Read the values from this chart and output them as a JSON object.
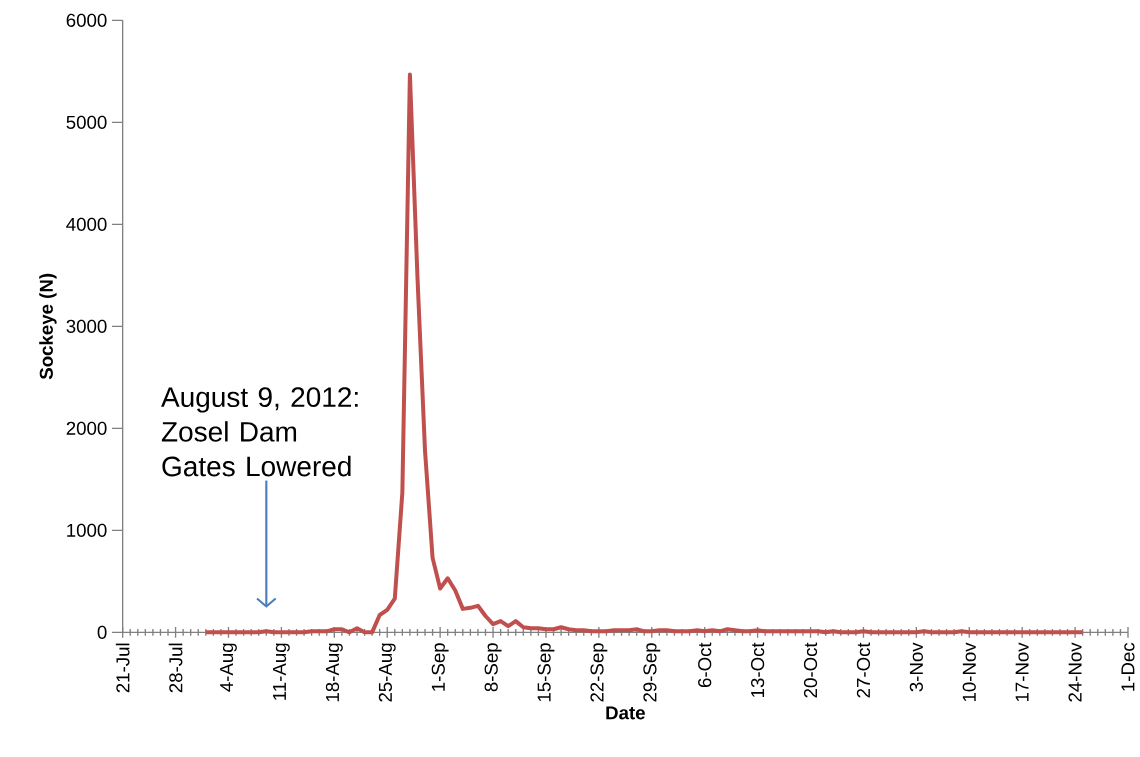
{
  "chart_data": {
    "type": "line",
    "xlabel": "Date",
    "ylabel": "Sockeye (N)",
    "xlim": [
      "2012-07-21",
      "2012-12-01"
    ],
    "ylim": [
      0,
      6000
    ],
    "yticks": [
      0,
      1000,
      2000,
      3000,
      4000,
      5000,
      6000
    ],
    "xticks": [
      {
        "value": "2012-07-21",
        "label": "21-Jul"
      },
      {
        "value": "2012-07-28",
        "label": "28-Jul"
      },
      {
        "value": "2012-08-04",
        "label": "4-Aug"
      },
      {
        "value": "2012-08-11",
        "label": "11-Aug"
      },
      {
        "value": "2012-08-18",
        "label": "18-Aug"
      },
      {
        "value": "2012-08-25",
        "label": "25-Aug"
      },
      {
        "value": "2012-09-01",
        "label": "1-Sep"
      },
      {
        "value": "2012-09-08",
        "label": "8-Sep"
      },
      {
        "value": "2012-09-15",
        "label": "15-Sep"
      },
      {
        "value": "2012-09-22",
        "label": "22-Sep"
      },
      {
        "value": "2012-09-29",
        "label": "29-Sep"
      },
      {
        "value": "2012-10-06",
        "label": "6-Oct"
      },
      {
        "value": "2012-10-13",
        "label": "13-Oct"
      },
      {
        "value": "2012-10-20",
        "label": "20-Oct"
      },
      {
        "value": "2012-10-27",
        "label": "27-Oct"
      },
      {
        "value": "2012-11-03",
        "label": "3-Nov"
      },
      {
        "value": "2012-11-10",
        "label": "10-Nov"
      },
      {
        "value": "2012-11-17",
        "label": "17-Nov"
      },
      {
        "value": "2012-11-24",
        "label": "24-Nov"
      },
      {
        "value": "2012-12-01",
        "label": "1-Dec"
      }
    ],
    "annotations": [
      "August 9, 2012: Zosel Dam Gates Lowered"
    ],
    "grid": false,
    "legend": false,
    "marker": "none",
    "line_style": "solid",
    "series": [
      {
        "color": "#c0504d",
        "x": [
          "2012-08-01",
          "2012-08-02",
          "2012-08-03",
          "2012-08-04",
          "2012-08-05",
          "2012-08-06",
          "2012-08-07",
          "2012-08-08",
          "2012-08-09",
          "2012-08-10",
          "2012-08-11",
          "2012-08-12",
          "2012-08-13",
          "2012-08-14",
          "2012-08-15",
          "2012-08-16",
          "2012-08-17",
          "2012-08-18",
          "2012-08-19",
          "2012-08-20",
          "2012-08-21",
          "2012-08-22",
          "2012-08-23",
          "2012-08-24",
          "2012-08-25",
          "2012-08-26",
          "2012-08-27",
          "2012-08-28",
          "2012-08-29",
          "2012-08-30",
          "2012-08-31",
          "2012-09-01",
          "2012-09-02",
          "2012-09-03",
          "2012-09-04",
          "2012-09-05",
          "2012-09-06",
          "2012-09-07",
          "2012-09-08",
          "2012-09-09",
          "2012-09-10",
          "2012-09-11",
          "2012-09-12",
          "2012-09-13",
          "2012-09-14",
          "2012-09-15",
          "2012-09-16",
          "2012-09-17",
          "2012-09-18",
          "2012-09-19",
          "2012-09-20",
          "2012-09-21",
          "2012-09-22",
          "2012-09-23",
          "2012-09-24",
          "2012-09-25",
          "2012-09-26",
          "2012-09-27",
          "2012-09-28",
          "2012-09-29",
          "2012-09-30",
          "2012-10-01",
          "2012-10-02",
          "2012-10-03",
          "2012-10-04",
          "2012-10-05",
          "2012-10-06",
          "2012-10-07",
          "2012-10-08",
          "2012-10-09",
          "2012-10-10",
          "2012-10-11",
          "2012-10-12",
          "2012-10-13",
          "2012-10-14",
          "2012-10-15",
          "2012-10-16",
          "2012-10-17",
          "2012-10-18",
          "2012-10-19",
          "2012-10-20",
          "2012-10-21",
          "2012-10-22",
          "2012-10-23",
          "2012-10-24",
          "2012-10-25",
          "2012-10-26",
          "2012-10-27",
          "2012-10-28",
          "2012-10-29",
          "2012-10-30",
          "2012-10-31",
          "2012-11-01",
          "2012-11-02",
          "2012-11-03",
          "2012-11-04",
          "2012-11-05",
          "2012-11-06",
          "2012-11-07",
          "2012-11-08",
          "2012-11-09",
          "2012-11-10",
          "2012-11-11",
          "2012-11-12",
          "2012-11-13",
          "2012-11-14",
          "2012-11-15",
          "2012-11-16",
          "2012-11-17",
          "2012-11-18",
          "2012-11-19",
          "2012-11-20",
          "2012-11-21",
          "2012-11-22",
          "2012-11-23",
          "2012-11-24",
          "2012-11-25"
        ],
        "values": [
          0,
          0,
          0,
          0,
          0,
          0,
          0,
          0,
          10,
          0,
          0,
          0,
          0,
          0,
          10,
          10,
          10,
          30,
          30,
          0,
          40,
          0,
          0,
          170,
          220,
          330,
          1370,
          5470,
          3480,
          1780,
          730,
          430,
          530,
          410,
          230,
          240,
          260,
          160,
          80,
          110,
          60,
          110,
          50,
          40,
          40,
          30,
          30,
          50,
          30,
          20,
          20,
          10,
          10,
          10,
          20,
          20,
          20,
          30,
          10,
          10,
          20,
          20,
          10,
          10,
          10,
          20,
          10,
          20,
          10,
          30,
          20,
          10,
          10,
          20,
          10,
          10,
          10,
          10,
          10,
          10,
          10,
          10,
          0,
          10,
          0,
          0,
          0,
          10,
          0,
          0,
          0,
          0,
          0,
          0,
          0,
          10,
          0,
          0,
          0,
          0,
          10,
          0,
          0,
          0,
          0,
          0,
          0,
          0,
          0,
          0,
          0,
          0,
          0,
          0,
          0,
          0,
          0
        ]
      }
    ]
  }
}
